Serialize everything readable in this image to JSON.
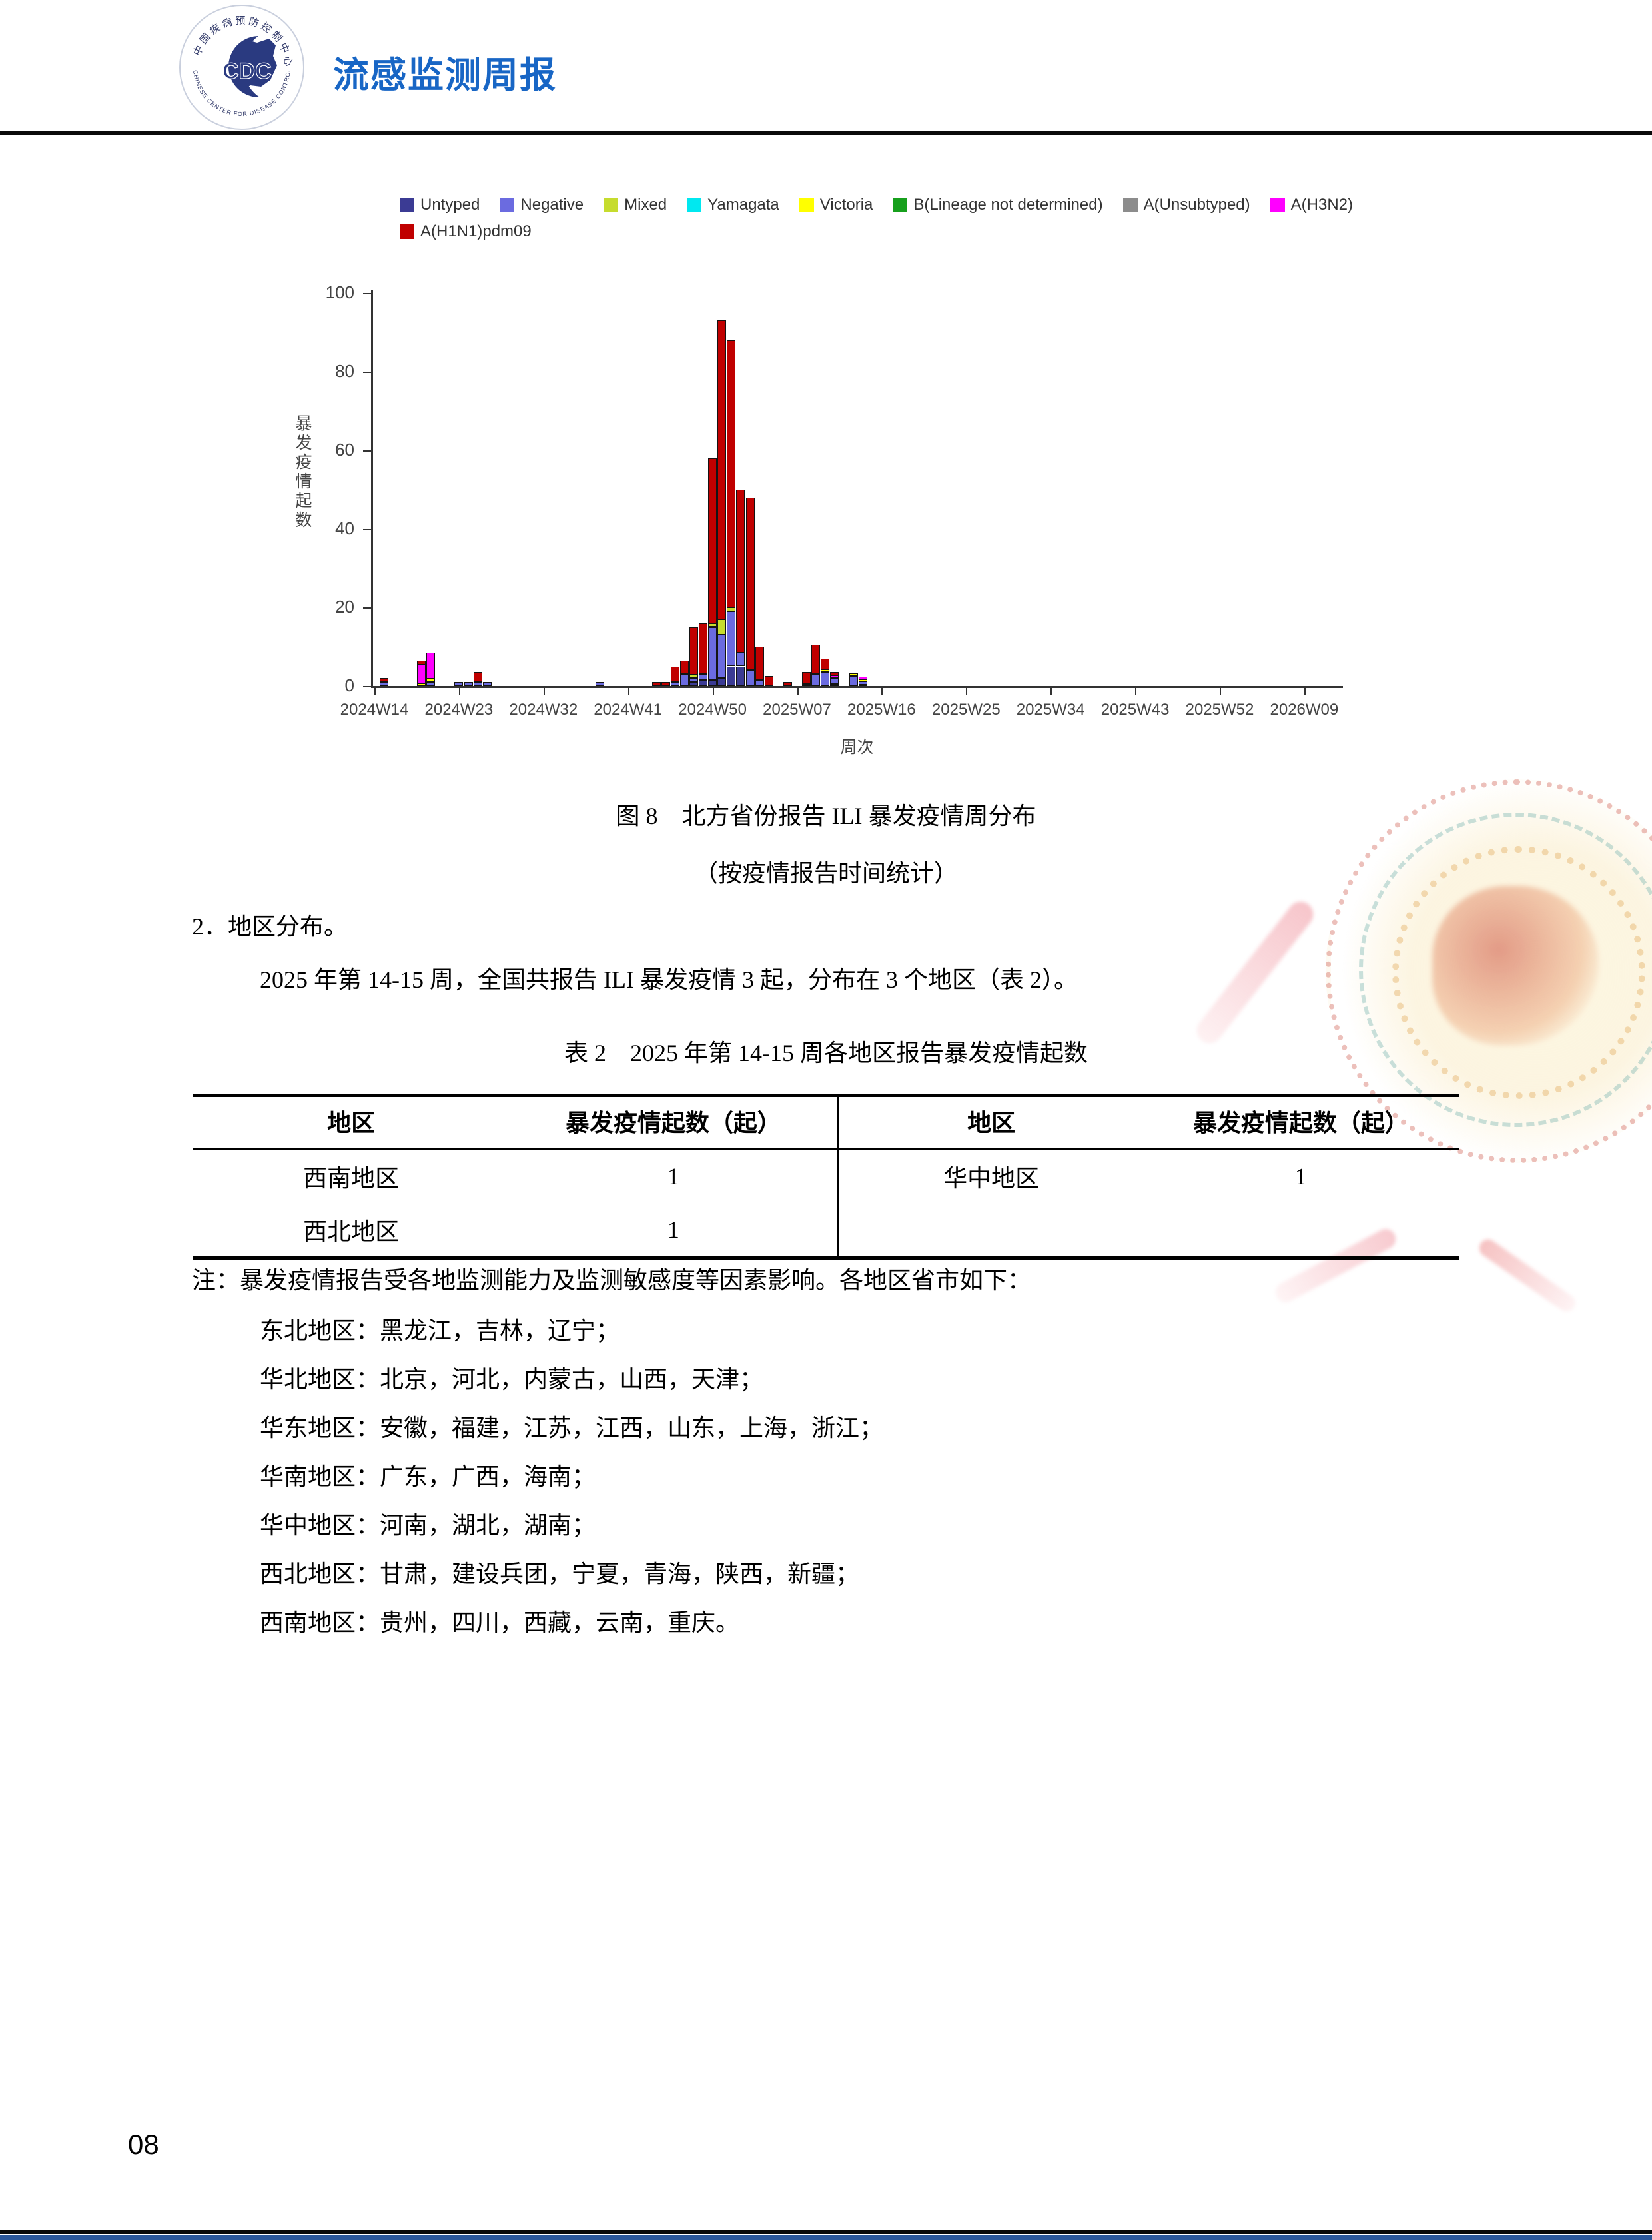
{
  "header": {
    "title": "流感监测周报",
    "logo_text": "CDC",
    "logo_ring_top": "中国疾病预防控制中心",
    "logo_ring_bottom": "CHINESE CENTER FOR DISEASE CONTROL AND PREVENTION"
  },
  "legend": {
    "rows": [
      [
        {
          "key": "untyped",
          "label": "Untyped"
        },
        {
          "key": "negative",
          "label": "Negative"
        },
        {
          "key": "mixed",
          "label": "Mixed"
        },
        {
          "key": "yamagata",
          "label": "Yamagata"
        },
        {
          "key": "victoria",
          "label": "Victoria"
        },
        {
          "key": "b_lineage_nd",
          "label": "B(Lineage not determined)"
        },
        {
          "key": "a_unsubtyped",
          "label": "A(Unsubtyped)"
        },
        {
          "key": "a_h3n2",
          "label": "A(H3N2)"
        }
      ],
      [
        {
          "key": "a_h1n1pdm09",
          "label": "A(H1N1)pdm09"
        }
      ]
    ]
  },
  "chart_data": {
    "type": "bar",
    "stacked": true,
    "title": "",
    "ylabel": "暴发疫情起数",
    "xlabel": "周次",
    "ylim": [
      0,
      100
    ],
    "yticks": [
      0,
      20,
      40,
      60,
      80,
      100
    ],
    "xtick_labels": [
      "2024W14",
      "2024W23",
      "2024W32",
      "2024W41",
      "2024W50",
      "2025W07",
      "2025W16",
      "2025W25",
      "2025W34",
      "2025W43",
      "2025W52",
      "2026W09"
    ],
    "xtick_week_index": [
      0,
      9,
      18,
      27,
      36,
      45,
      54,
      63,
      72,
      81,
      90,
      99
    ],
    "series_order": [
      "untyped",
      "negative",
      "mixed",
      "yamagata",
      "victoria",
      "b_lineage_nd",
      "a_unsubtyped",
      "a_h3n2",
      "a_h1n1pdm09"
    ],
    "series_colors": {
      "untyped": "#3B3B94",
      "negative": "#6B6BE0",
      "mixed": "#C6DC2E",
      "yamagata": "#00E8F0",
      "victoria": "#FFFF00",
      "b_lineage_nd": "#17A01D",
      "a_unsubtyped": "#8C8C8C",
      "a_h3n2": "#FF00FF",
      "a_h1n1pdm09": "#C00000"
    },
    "bars": [
      {
        "week": "2024W15",
        "index": 1,
        "segments": {
          "negative": 1,
          "a_h1n1pdm09": 1
        }
      },
      {
        "week": "2024W19",
        "index": 5,
        "segments": {
          "victoria": 0.7,
          "a_h3n2": 4.8,
          "a_h1n1pdm09": 1
        }
      },
      {
        "week": "2024W20",
        "index": 6,
        "segments": {
          "negative": 1,
          "victoria": 0.8,
          "a_h3n2": 6.7
        }
      },
      {
        "week": "2024W23",
        "index": 9,
        "segments": {
          "negative": 1
        }
      },
      {
        "week": "2024W24",
        "index": 10,
        "segments": {
          "negative": 1
        }
      },
      {
        "week": "2024W25",
        "index": 11,
        "segments": {
          "negative": 1,
          "a_h1n1pdm09": 2.5
        }
      },
      {
        "week": "2024W26",
        "index": 12,
        "segments": {
          "negative": 1
        }
      },
      {
        "week": "2024W38",
        "index": 24,
        "segments": {
          "negative": 1
        }
      },
      {
        "week": "2024W44",
        "index": 30,
        "segments": {
          "a_h1n1pdm09": 1
        }
      },
      {
        "week": "2024W45",
        "index": 31,
        "segments": {
          "a_h1n1pdm09": 1
        }
      },
      {
        "week": "2024W46",
        "index": 32,
        "segments": {
          "negative": 1,
          "a_h1n1pdm09": 4
        }
      },
      {
        "week": "2024W47",
        "index": 33,
        "segments": {
          "negative": 3,
          "a_h1n1pdm09": 3.5
        }
      },
      {
        "week": "2024W48",
        "index": 34,
        "segments": {
          "untyped": 1,
          "negative": 1,
          "mixed": 0.8,
          "a_h1n1pdm09": 12.2
        }
      },
      {
        "week": "2024W49",
        "index": 35,
        "segments": {
          "untyped": 1.5,
          "negative": 1.5,
          "a_h1n1pdm09": 13
        }
      },
      {
        "week": "2024W50",
        "index": 36,
        "segments": {
          "untyped": 1.5,
          "negative": 13.5,
          "mixed": 1,
          "a_h1n1pdm09": 42
        }
      },
      {
        "week": "2024W51",
        "index": 37,
        "segments": {
          "untyped": 2,
          "negative": 11,
          "mixed": 4,
          "a_h1n1pdm09": 76
        }
      },
      {
        "week": "2024W52",
        "index": 38,
        "segments": {
          "untyped": 5,
          "negative": 14,
          "mixed": 1,
          "a_h1n1pdm09": 68
        }
      },
      {
        "week": "2025W01",
        "index": 39,
        "segments": {
          "untyped": 5,
          "negative": 3.5,
          "a_h1n1pdm09": 41.5
        }
      },
      {
        "week": "2025W02",
        "index": 40,
        "segments": {
          "negative": 4,
          "a_h1n1pdm09": 44
        }
      },
      {
        "week": "2025W03",
        "index": 41,
        "segments": {
          "negative": 1.5,
          "a_h1n1pdm09": 8.5
        }
      },
      {
        "week": "2025W04",
        "index": 42,
        "segments": {
          "a_h1n1pdm09": 2.5
        }
      },
      {
        "week": "2025W06",
        "index": 44,
        "segments": {
          "a_h1n1pdm09": 1
        }
      },
      {
        "week": "2025W08",
        "index": 46,
        "segments": {
          "untyped": 0.5,
          "a_h1n1pdm09": 3
        }
      },
      {
        "week": "2025W09",
        "index": 47,
        "segments": {
          "negative": 3,
          "a_h1n1pdm09": 7.5
        }
      },
      {
        "week": "2025W10",
        "index": 48,
        "segments": {
          "negative": 3.5,
          "victoria": 0.7,
          "a_h1n1pdm09": 2.8
        }
      },
      {
        "week": "2025W11",
        "index": 49,
        "segments": {
          "untyped": 0.5,
          "negative": 1.5,
          "a_h3n2": 0.7,
          "a_h1n1pdm09": 0.8
        }
      },
      {
        "week": "2025W13",
        "index": 51,
        "segments": {
          "negative": 2.5,
          "victoria": 0.7
        }
      },
      {
        "week": "2025W14",
        "index": 52,
        "segments": {
          "untyped": 0.3,
          "negative": 0.9,
          "victoria": 0.5,
          "a_h3n2": 0.7
        }
      }
    ]
  },
  "figure_caption": {
    "line1": "图 8　北方省份报告 ILI 暴发疫情周分布",
    "line2": "（按疫情报告时间统计）"
  },
  "section": {
    "heading": "2．地区分布。",
    "paragraph": "2025 年第 14-15 周，全国共报告 ILI 暴发疫情 3 起，分布在 3 个地区（表 2）。"
  },
  "table": {
    "title": "表 2　2025 年第 14-15 周各地区报告暴发疫情起数",
    "headers": [
      "地区",
      "暴发疫情起数（起）",
      "地区",
      "暴发疫情起数（起）"
    ],
    "rows": [
      [
        "西南地区",
        "1",
        "华中地区",
        "1"
      ],
      [
        "西北地区",
        "1",
        "",
        ""
      ]
    ]
  },
  "notes": {
    "intro": "注：暴发疫情报告受各地监测能力及监测敏感度等因素影响。各地区省市如下：",
    "regions": [
      "东北地区：黑龙江，吉林，辽宁；",
      "华北地区：北京，河北，内蒙古，山西，天津；",
      "华东地区：安徽，福建，江苏，江西，山东，上海，浙江；",
      "华南地区：广东，广西，海南；",
      "华中地区：河南，湖北，湖南；",
      "西北地区：甘肃，建设兵团，宁夏，青海，陕西，新疆；",
      "西南地区：贵州，四川，西藏，云南，重庆。"
    ]
  },
  "footer": {
    "page_number": "08"
  },
  "colors": {
    "accent_blue": "#1866C5",
    "logo_navy": "#1F3B7A",
    "rule_black": "#0A0A0A",
    "footer_bar": "#2B579A"
  }
}
